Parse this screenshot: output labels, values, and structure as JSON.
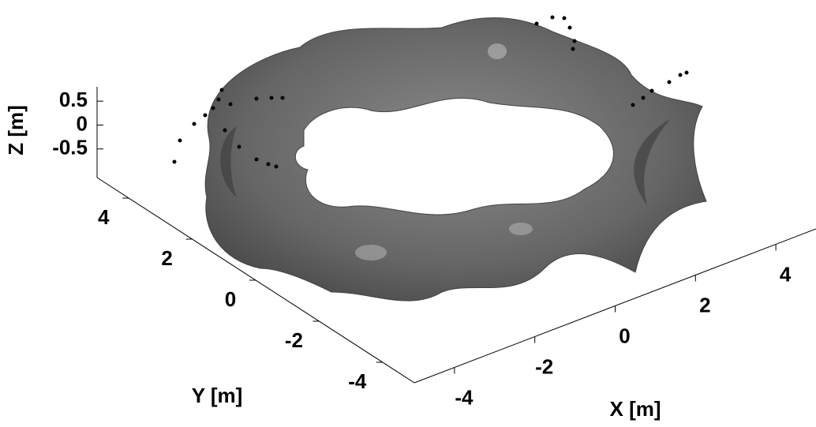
{
  "chart_data": {
    "type": "surface3d",
    "xlabel": "X [m]",
    "ylabel": "Y [m]",
    "zlabel": "Z [m]",
    "xlim": [
      -5,
      5
    ],
    "ylim": [
      -5,
      5
    ],
    "zlim": [
      -1.1,
      0.8
    ],
    "xticks": [
      -4,
      -2,
      0,
      2,
      4
    ],
    "yticks": [
      -4,
      -2,
      0,
      2,
      4
    ],
    "zticks": [
      -0.5,
      0,
      0.5
    ],
    "color": "#6e6e6e"
  }
}
